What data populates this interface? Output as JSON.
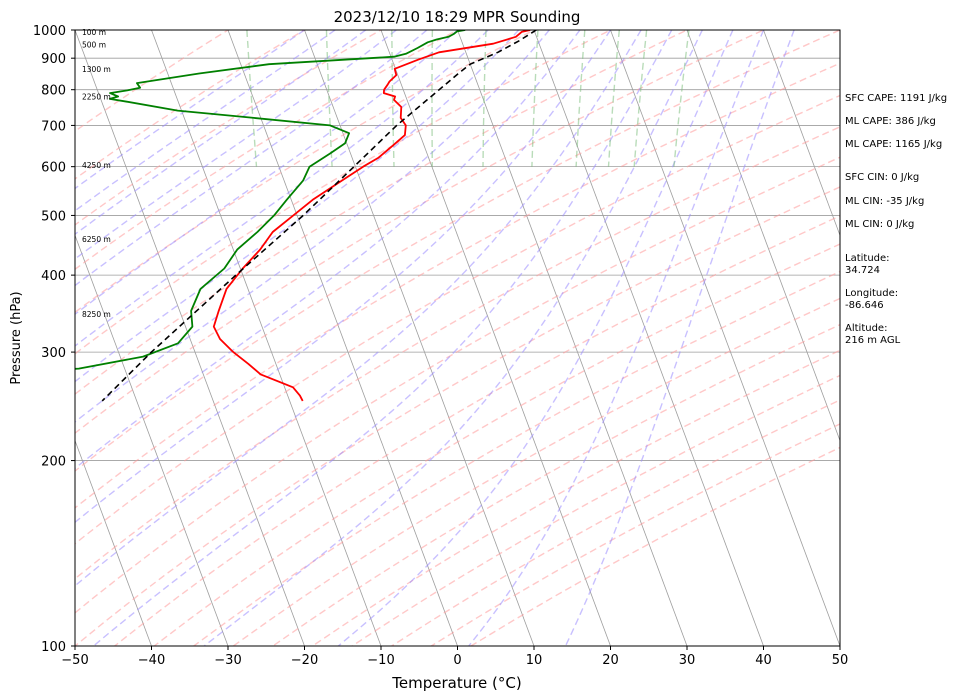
{
  "colors": {
    "temperature": "#ff0000",
    "dewpoint": "#008000",
    "parcel": "#000000",
    "isotherm": "#9e9e9e",
    "isobar": "#9e9e9e",
    "dry_adiabat": "#ff9a9a",
    "moist_adiabat": "#9a8cff",
    "mixing_ratio": "#7fbf7f"
  },
  "chart_data": {
    "type": "line",
    "subtype": "skew-t log-p sounding",
    "title": "2023/12/10 18:29 MPR Sounding",
    "xlabel": "Temperature (°C)",
    "ylabel": "Pressure (hPa)",
    "xlim": [
      -50,
      50
    ],
    "ylim": [
      1000,
      100
    ],
    "log_y": true,
    "x_ticks": [
      "−50",
      "−40",
      "−30",
      "−20",
      "−10",
      "0",
      "10",
      "20",
      "30",
      "40",
      "50"
    ],
    "y_ticks": [
      "100",
      "200",
      "300",
      "400",
      "500",
      "600",
      "700",
      "800",
      "900",
      "1000"
    ],
    "height_labels": [
      {
        "text": "100 m",
        "p": 990
      },
      {
        "text": "500 m",
        "p": 945
      },
      {
        "text": "1300 m",
        "p": 862
      },
      {
        "text": "2250 m",
        "p": 778
      },
      {
        "text": "4250 m",
        "p": 603
      },
      {
        "text": "6250 m",
        "p": 457
      },
      {
        "text": "8250 m",
        "p": 345
      }
    ],
    "grid": true,
    "legend": "none",
    "series": [
      {
        "name": "Temperature",
        "points": [
          [
            1000,
            9.5
          ],
          [
            993,
            8.3
          ],
          [
            975,
            7.3
          ],
          [
            950,
            4.0
          ],
          [
            920,
            -3.5
          ],
          [
            895,
            -6.6
          ],
          [
            865,
            -10.1
          ],
          [
            845,
            -10.2
          ],
          [
            825,
            -11.4
          ],
          [
            815,
            -11.8
          ],
          [
            800,
            -12.5
          ],
          [
            790,
            -12.7
          ],
          [
            780,
            -11.4
          ],
          [
            770,
            -11.7
          ],
          [
            750,
            -11.1
          ],
          [
            720,
            -11.7
          ],
          [
            700,
            -11.4
          ],
          [
            675,
            -12.0
          ],
          [
            650,
            -14.0
          ],
          [
            620,
            -16.6
          ],
          [
            600,
            -19.0
          ],
          [
            570,
            -22.4
          ],
          [
            530,
            -27.2
          ],
          [
            500,
            -30.5
          ],
          [
            470,
            -34.0
          ],
          [
            440,
            -36.5
          ],
          [
            410,
            -39.7
          ],
          [
            380,
            -42.8
          ],
          [
            350,
            -44.9
          ],
          [
            330,
            -46.3
          ],
          [
            315,
            -46.1
          ],
          [
            300,
            -45.0
          ],
          [
            287,
            -43.6
          ],
          [
            276,
            -42.5
          ],
          [
            263,
            -38.9
          ],
          [
            255,
            -38.4
          ],
          [
            250,
            -38.3
          ]
        ]
      },
      {
        "name": "Dewpoint",
        "points": [
          [
            1000,
            1.0
          ],
          [
            995,
            -0.1
          ],
          [
            985,
            -0.7
          ],
          [
            975,
            -1.5
          ],
          [
            965,
            -3.2
          ],
          [
            955,
            -4.5
          ],
          [
            935,
            -6.1
          ],
          [
            915,
            -7.9
          ],
          [
            905,
            -9.6
          ],
          [
            880,
            -26.3
          ],
          [
            850,
            -35.9
          ],
          [
            820,
            -44.5
          ],
          [
            806,
            -44.3
          ],
          [
            798,
            -46.1
          ],
          [
            790,
            -48.5
          ],
          [
            780,
            -47.6
          ],
          [
            773,
            -48.8
          ],
          [
            765,
            -46.7
          ],
          [
            740,
            -40.5
          ],
          [
            720,
            -30.9
          ],
          [
            700,
            -21.3
          ],
          [
            680,
            -19.2
          ],
          [
            655,
            -20.2
          ],
          [
            630,
            -22.7
          ],
          [
            600,
            -26.0
          ],
          [
            570,
            -27.5
          ],
          [
            530,
            -30.6
          ],
          [
            500,
            -33.0
          ],
          [
            470,
            -36.0
          ],
          [
            440,
            -39.5
          ],
          [
            410,
            -42.1
          ],
          [
            380,
            -46.2
          ],
          [
            350,
            -48.5
          ],
          [
            330,
            -49.1
          ],
          [
            310,
            -51.8
          ],
          [
            295,
            -57.0
          ],
          [
            282,
            -66.0
          ],
          [
            276,
            -79.0
          ],
          [
            268,
            -98.0
          ]
        ]
      },
      {
        "name": "Parcel",
        "points": [
          [
            1000,
            10.3
          ],
          [
            960,
            7.5
          ],
          [
            920,
            4.2
          ],
          [
            880,
            0.0
          ],
          [
            850,
            -2.0
          ],
          [
            800,
            -5.3
          ],
          [
            700,
            -12.6
          ],
          [
            600,
            -20.2
          ],
          [
            500,
            -29.2
          ],
          [
            400,
            -40.9
          ],
          [
            300,
            -55.7
          ],
          [
            250,
            -64.5
          ]
        ]
      }
    ]
  },
  "stats": [
    {
      "key": "sfc_cape",
      "text": "SFC CAPE: 1191 J/kg"
    },
    {
      "key": "ml_cape_1",
      "text": "ML CAPE: 386 J/kg"
    },
    {
      "key": "ml_cape_2",
      "text": "ML CAPE: 1165 J/kg"
    },
    {
      "key": "sfc_cin",
      "text": "SFC CIN: 0 J/kg"
    },
    {
      "key": "ml_cin_1",
      "text": "ML CIN: -35 J/kg"
    },
    {
      "key": "ml_cin_2",
      "text": "ML CIN: 0 J/kg"
    }
  ],
  "location": {
    "latitude_label": "Latitude:",
    "latitude": "34.724",
    "longitude_label": "Longitude:",
    "longitude": "-86.646",
    "altitude_label": "Altitude:",
    "altitude": "216 m AGL"
  }
}
